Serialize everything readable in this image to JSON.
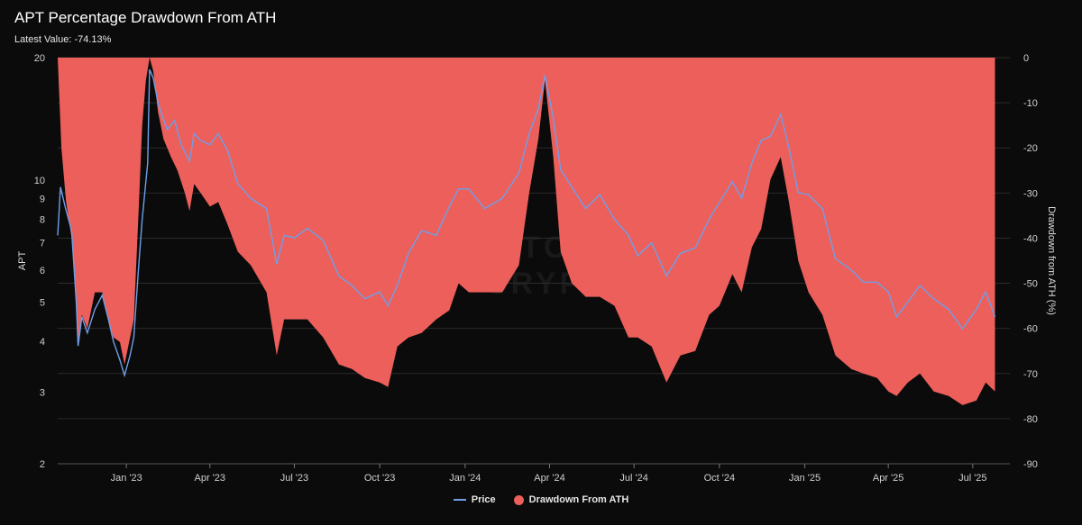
{
  "header": {
    "title": "APT Percentage Drawdown From ATH",
    "subtitle": "Latest Value: -74.13%"
  },
  "watermark": {
    "line1": "BITCOIN",
    "line2": "CRYPTO"
  },
  "legend": [
    {
      "label": "Price",
      "color": "#6f9fe8",
      "kind": "line"
    },
    {
      "label": "Drawdown From ATH",
      "color": "#ec5f5b",
      "kind": "dot"
    }
  ],
  "chart_data": {
    "type": "area",
    "ylabel": "APT",
    "y2label": "Drawdown from ATH (%)",
    "y_scale": "log",
    "ylim": [
      2,
      20
    ],
    "y_ticks": [
      2,
      3,
      4,
      5,
      6,
      7,
      8,
      9,
      10,
      20
    ],
    "y2lim": [
      -90,
      0
    ],
    "y2_ticks": [
      0,
      -10,
      -20,
      -30,
      -40,
      -50,
      -60,
      -70,
      -80,
      -90
    ],
    "xlim": [
      "2022-10-19",
      "2025-08-10"
    ],
    "x_ticks": [
      {
        "date": "2023-01-01",
        "label": "Jan '23"
      },
      {
        "date": "2023-04-01",
        "label": "Apr '23"
      },
      {
        "date": "2023-07-01",
        "label": "Jul '23"
      },
      {
        "date": "2023-10-01",
        "label": "Oct '23"
      },
      {
        "date": "2024-01-01",
        "label": "Jan '24"
      },
      {
        "date": "2024-04-01",
        "label": "Apr '24"
      },
      {
        "date": "2024-07-01",
        "label": "Jul '24"
      },
      {
        "date": "2024-10-01",
        "label": "Oct '24"
      },
      {
        "date": "2025-01-01",
        "label": "Jan '25"
      },
      {
        "date": "2025-04-01",
        "label": "Apr '25"
      },
      {
        "date": "2025-07-01",
        "label": "Jul '25"
      }
    ],
    "grid": true,
    "legend_position": "bottom-center",
    "series": [
      {
        "name": "Price",
        "axis": "left",
        "color": "#6f9fe8",
        "points": [
          [
            "2022-10-19",
            7.3
          ],
          [
            "2022-10-22",
            9.6
          ],
          [
            "2022-10-27",
            8.6
          ],
          [
            "2022-11-03",
            7.5
          ],
          [
            "2022-11-08",
            5.0
          ],
          [
            "2022-11-10",
            3.9
          ],
          [
            "2022-11-14",
            4.6
          ],
          [
            "2022-11-20",
            4.2
          ],
          [
            "2022-11-28",
            4.8
          ],
          [
            "2022-12-06",
            5.2
          ],
          [
            "2022-12-12",
            4.6
          ],
          [
            "2022-12-18",
            4.0
          ],
          [
            "2022-12-25",
            3.6
          ],
          [
            "2022-12-30",
            3.3
          ],
          [
            "2023-01-05",
            3.7
          ],
          [
            "2023-01-09",
            4.1
          ],
          [
            "2023-01-14",
            6.0
          ],
          [
            "2023-01-18",
            8.0
          ],
          [
            "2023-01-24",
            11.0
          ],
          [
            "2023-01-26",
            18.7
          ],
          [
            "2023-01-30",
            17.8
          ],
          [
            "2023-02-04",
            15.5
          ],
          [
            "2023-02-08",
            14.5
          ],
          [
            "2023-02-14",
            13.3
          ],
          [
            "2023-02-22",
            14.0
          ],
          [
            "2023-03-01",
            12.2
          ],
          [
            "2023-03-10",
            11.1
          ],
          [
            "2023-03-15",
            13.0
          ],
          [
            "2023-03-22",
            12.5
          ],
          [
            "2023-04-01",
            12.2
          ],
          [
            "2023-04-10",
            13.0
          ],
          [
            "2023-04-20",
            11.8
          ],
          [
            "2023-05-01",
            9.8
          ],
          [
            "2023-05-15",
            9.0
          ],
          [
            "2023-06-01",
            8.5
          ],
          [
            "2023-06-12",
            6.2
          ],
          [
            "2023-06-20",
            7.3
          ],
          [
            "2023-07-01",
            7.2
          ],
          [
            "2023-07-15",
            7.6
          ],
          [
            "2023-08-01",
            7.1
          ],
          [
            "2023-08-18",
            5.8
          ],
          [
            "2023-09-01",
            5.5
          ],
          [
            "2023-09-15",
            5.1
          ],
          [
            "2023-10-01",
            5.3
          ],
          [
            "2023-10-10",
            4.9
          ],
          [
            "2023-10-20",
            5.5
          ],
          [
            "2023-11-01",
            6.6
          ],
          [
            "2023-11-15",
            7.5
          ],
          [
            "2023-12-01",
            7.3
          ],
          [
            "2023-12-15",
            8.6
          ],
          [
            "2023-12-25",
            9.5
          ],
          [
            "2024-01-05",
            9.5
          ],
          [
            "2024-01-22",
            8.5
          ],
          [
            "2024-02-10",
            9.0
          ],
          [
            "2024-02-28",
            10.4
          ],
          [
            "2024-03-10",
            13.0
          ],
          [
            "2024-03-20",
            15.0
          ],
          [
            "2024-03-27",
            18.1
          ],
          [
            "2024-04-05",
            14.2
          ],
          [
            "2024-04-13",
            10.6
          ],
          [
            "2024-04-25",
            9.6
          ],
          [
            "2024-05-10",
            8.5
          ],
          [
            "2024-05-25",
            9.2
          ],
          [
            "2024-06-10",
            8.0
          ],
          [
            "2024-06-25",
            7.3
          ],
          [
            "2024-07-05",
            6.5
          ],
          [
            "2024-07-20",
            7.0
          ],
          [
            "2024-08-05",
            5.8
          ],
          [
            "2024-08-20",
            6.6
          ],
          [
            "2024-09-05",
            6.8
          ],
          [
            "2024-09-20",
            8.0
          ],
          [
            "2024-10-01",
            8.8
          ],
          [
            "2024-10-15",
            9.9
          ],
          [
            "2024-10-25",
            9.0
          ],
          [
            "2024-11-05",
            11.0
          ],
          [
            "2024-11-15",
            12.5
          ],
          [
            "2024-11-25",
            12.8
          ],
          [
            "2024-12-06",
            14.5
          ],
          [
            "2024-12-15",
            12.0
          ],
          [
            "2024-12-25",
            9.3
          ],
          [
            "2025-01-05",
            9.2
          ],
          [
            "2025-01-20",
            8.5
          ],
          [
            "2025-02-03",
            6.4
          ],
          [
            "2025-02-20",
            6.0
          ],
          [
            "2025-03-05",
            5.6
          ],
          [
            "2025-03-20",
            5.6
          ],
          [
            "2025-04-01",
            5.3
          ],
          [
            "2025-04-10",
            4.6
          ],
          [
            "2025-04-22",
            5.0
          ],
          [
            "2025-05-05",
            5.5
          ],
          [
            "2025-05-20",
            5.1
          ],
          [
            "2025-06-05",
            4.8
          ],
          [
            "2025-06-20",
            4.3
          ],
          [
            "2025-07-05",
            4.8
          ],
          [
            "2025-07-15",
            5.3
          ],
          [
            "2025-07-25",
            4.6
          ]
        ]
      },
      {
        "name": "Drawdown From ATH",
        "axis": "right",
        "color": "#ec5f5b",
        "points": [
          [
            "2022-10-19",
            0
          ],
          [
            "2022-10-23",
            -20
          ],
          [
            "2022-10-28",
            -32
          ],
          [
            "2022-11-03",
            -40
          ],
          [
            "2022-11-08",
            -55
          ],
          [
            "2022-11-10",
            -63
          ],
          [
            "2022-11-14",
            -57
          ],
          [
            "2022-11-20",
            -60
          ],
          [
            "2022-11-28",
            -52
          ],
          [
            "2022-12-06",
            -52
          ],
          [
            "2022-12-12",
            -58
          ],
          [
            "2022-12-18",
            -62
          ],
          [
            "2022-12-25",
            -63
          ],
          [
            "2022-12-30",
            -68
          ],
          [
            "2023-01-05",
            -62
          ],
          [
            "2023-01-09",
            -58
          ],
          [
            "2023-01-14",
            -35
          ],
          [
            "2023-01-18",
            -15
          ],
          [
            "2023-01-22",
            -5
          ],
          [
            "2023-01-26",
            0
          ],
          [
            "2023-01-30",
            -3
          ],
          [
            "2023-02-04",
            -12
          ],
          [
            "2023-02-10",
            -18
          ],
          [
            "2023-02-18",
            -22
          ],
          [
            "2023-02-25",
            -25
          ],
          [
            "2023-03-05",
            -30
          ],
          [
            "2023-03-10",
            -34
          ],
          [
            "2023-03-15",
            -28
          ],
          [
            "2023-03-22",
            -30
          ],
          [
            "2023-04-01",
            -33
          ],
          [
            "2023-04-10",
            -32
          ],
          [
            "2023-04-20",
            -37
          ],
          [
            "2023-05-01",
            -43
          ],
          [
            "2023-05-15",
            -46
          ],
          [
            "2023-06-01",
            -52
          ],
          [
            "2023-06-12",
            -66
          ],
          [
            "2023-06-20",
            -58
          ],
          [
            "2023-07-01",
            -58
          ],
          [
            "2023-07-15",
            -58
          ],
          [
            "2023-08-01",
            -62
          ],
          [
            "2023-08-18",
            -68
          ],
          [
            "2023-09-01",
            -69
          ],
          [
            "2023-09-15",
            -71
          ],
          [
            "2023-10-01",
            -72
          ],
          [
            "2023-10-10",
            -73
          ],
          [
            "2023-10-20",
            -64
          ],
          [
            "2023-11-01",
            -62
          ],
          [
            "2023-11-15",
            -61
          ],
          [
            "2023-12-01",
            -58
          ],
          [
            "2023-12-15",
            -56
          ],
          [
            "2023-12-25",
            -50
          ],
          [
            "2024-01-05",
            -52
          ],
          [
            "2024-01-22",
            -52
          ],
          [
            "2024-02-10",
            -52
          ],
          [
            "2024-02-28",
            -46
          ],
          [
            "2024-03-10",
            -30
          ],
          [
            "2024-03-20",
            -18
          ],
          [
            "2024-03-27",
            -5
          ],
          [
            "2024-04-05",
            -22
          ],
          [
            "2024-04-13",
            -43
          ],
          [
            "2024-04-25",
            -50
          ],
          [
            "2024-05-10",
            -53
          ],
          [
            "2024-05-25",
            -53
          ],
          [
            "2024-06-10",
            -55
          ],
          [
            "2024-06-25",
            -62
          ],
          [
            "2024-07-05",
            -62
          ],
          [
            "2024-07-20",
            -64
          ],
          [
            "2024-08-05",
            -72
          ],
          [
            "2024-08-20",
            -66
          ],
          [
            "2024-09-05",
            -65
          ],
          [
            "2024-09-20",
            -57
          ],
          [
            "2024-10-01",
            -55
          ],
          [
            "2024-10-15",
            -48
          ],
          [
            "2024-10-25",
            -52
          ],
          [
            "2024-11-05",
            -42
          ],
          [
            "2024-11-15",
            -38
          ],
          [
            "2024-11-25",
            -27
          ],
          [
            "2024-12-06",
            -22
          ],
          [
            "2024-12-15",
            -32
          ],
          [
            "2024-12-25",
            -45
          ],
          [
            "2025-01-05",
            -52
          ],
          [
            "2025-01-20",
            -57
          ],
          [
            "2025-02-03",
            -66
          ],
          [
            "2025-02-20",
            -69
          ],
          [
            "2025-03-05",
            -70
          ],
          [
            "2025-03-20",
            -71
          ],
          [
            "2025-04-01",
            -74
          ],
          [
            "2025-04-10",
            -75
          ],
          [
            "2025-04-22",
            -72
          ],
          [
            "2025-05-05",
            -70
          ],
          [
            "2025-05-20",
            -74
          ],
          [
            "2025-06-05",
            -75
          ],
          [
            "2025-06-20",
            -77
          ],
          [
            "2025-07-05",
            -76
          ],
          [
            "2025-07-15",
            -72
          ],
          [
            "2025-07-25",
            -74
          ]
        ]
      }
    ]
  }
}
